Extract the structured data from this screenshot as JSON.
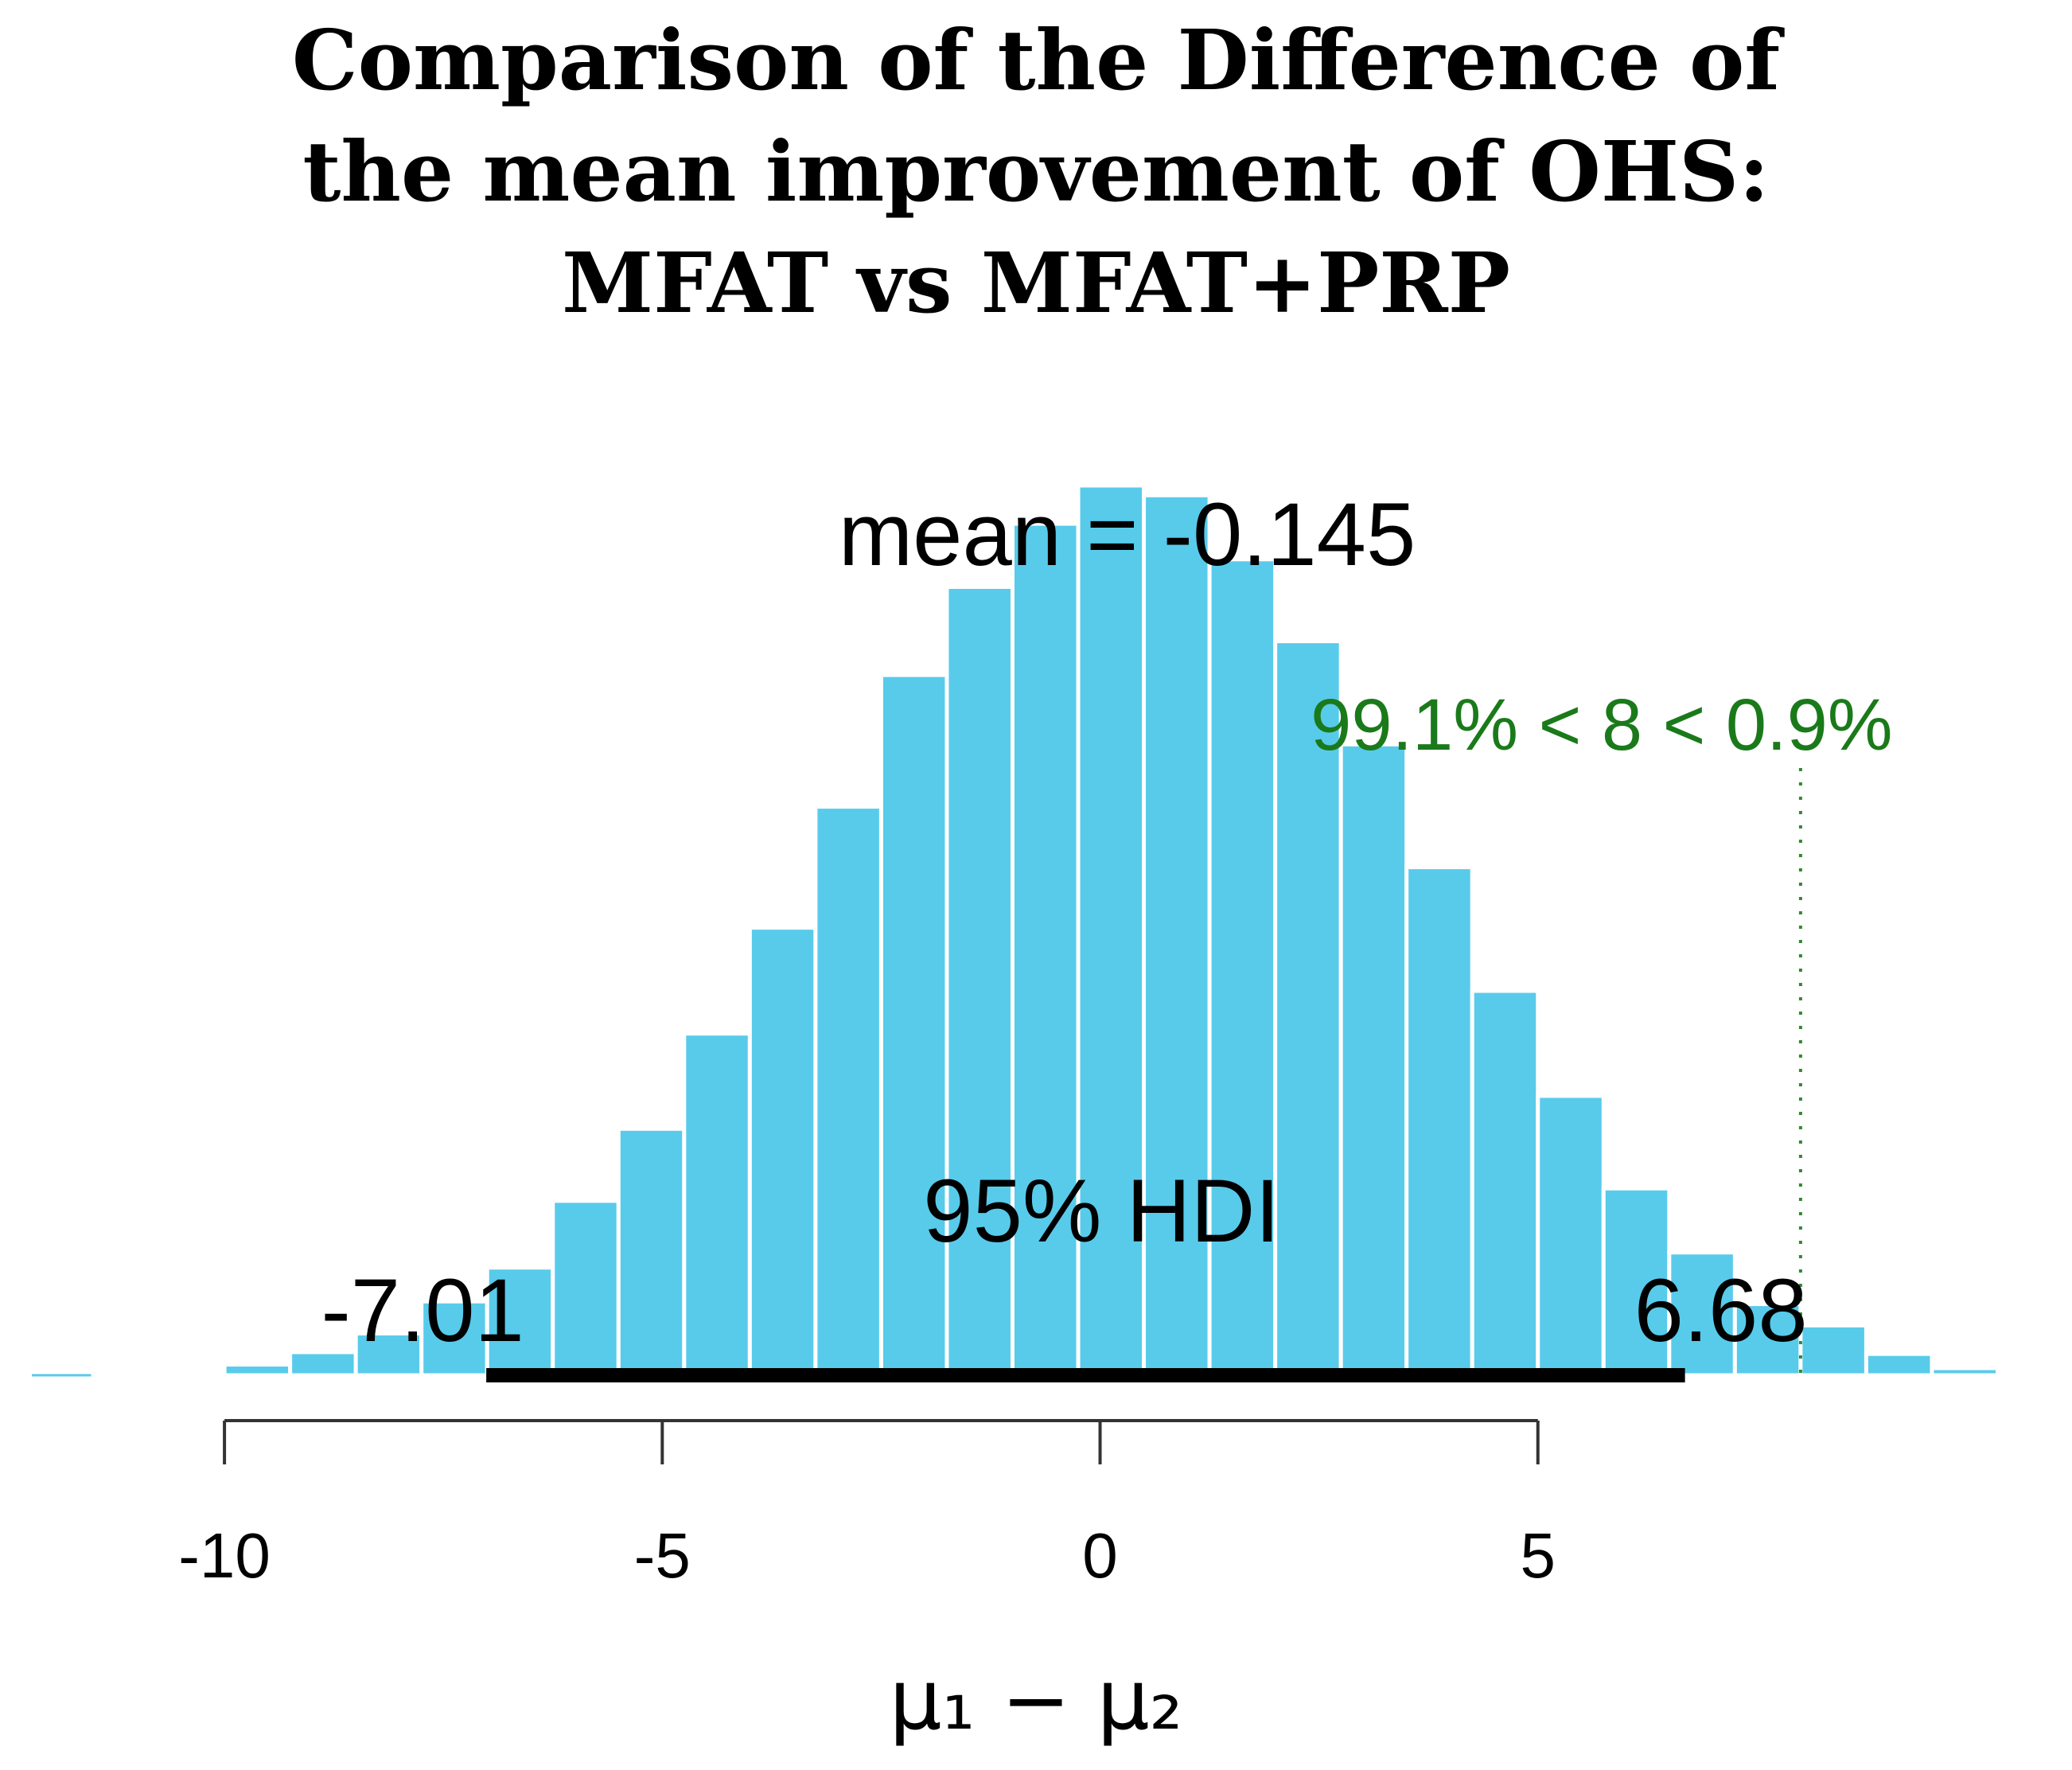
{
  "chart_data": {
    "type": "bar",
    "title_lines": [
      "Comparison of the Difference of",
      "the mean improvement of OHS:",
      "MFAT vs MFAT+PRP"
    ],
    "xlabel": "μ₁ − μ₂",
    "ylabel": "",
    "xlim": [
      -12.2,
      10.7
    ],
    "ylim": [
      0,
      1
    ],
    "grid": false,
    "x_ticks": [
      -10,
      -5,
      0,
      5
    ],
    "x_tick_labels": [
      "-10",
      "-5",
      "0",
      "5"
    ],
    "bin_width": 0.75,
    "bins": [
      {
        "x0": -11.5,
        "x1": -10.75,
        "value": 0.002
      },
      {
        "x0": -10.75,
        "x1": -10.0,
        "value": 0.004
      },
      {
        "x0": -10.0,
        "x1": -9.25,
        "value": 0.012
      },
      {
        "x0": -9.25,
        "x1": -8.5,
        "value": 0.026
      },
      {
        "x0": -8.5,
        "x1": -7.75,
        "value": 0.047
      },
      {
        "x0": -7.75,
        "x1": -7.0,
        "value": 0.083
      },
      {
        "x0": -7.0,
        "x1": -6.25,
        "value": 0.121
      },
      {
        "x0": -6.25,
        "x1": -5.5,
        "value": 0.196
      },
      {
        "x0": -5.5,
        "x1": -4.75,
        "value": 0.277
      },
      {
        "x0": -4.75,
        "x1": -4.0,
        "value": 0.384
      },
      {
        "x0": -4.0,
        "x1": -3.25,
        "value": 0.503
      },
      {
        "x0": -3.25,
        "x1": -2.5,
        "value": 0.639
      },
      {
        "x0": -2.5,
        "x1": -1.75,
        "value": 0.787
      },
      {
        "x0": -1.75,
        "x1": -1.0,
        "value": 0.886
      },
      {
        "x0": -1.0,
        "x1": -0.25,
        "value": 0.957
      },
      {
        "x0": -0.25,
        "x1": 0.5,
        "value": 1.0
      },
      {
        "x0": 0.5,
        "x1": 1.25,
        "value": 0.989
      },
      {
        "x0": 1.25,
        "x1": 2.0,
        "value": 0.917
      },
      {
        "x0": 2.0,
        "x1": 2.75,
        "value": 0.825
      },
      {
        "x0": 2.75,
        "x1": 3.5,
        "value": 0.709
      },
      {
        "x0": 3.5,
        "x1": 4.25,
        "value": 0.571
      },
      {
        "x0": 4.25,
        "x1": 5.0,
        "value": 0.432
      },
      {
        "x0": 5.0,
        "x1": 5.75,
        "value": 0.314
      },
      {
        "x0": 5.75,
        "x1": 6.5,
        "value": 0.21
      },
      {
        "x0": 6.5,
        "x1": 7.25,
        "value": 0.138
      },
      {
        "x0": 7.25,
        "x1": 8.0,
        "value": 0.08
      },
      {
        "x0": 8.0,
        "x1": 8.75,
        "value": 0.056
      },
      {
        "x0": 8.75,
        "x1": 9.5,
        "value": 0.024
      },
      {
        "x0": 9.5,
        "x1": 10.25,
        "value": 0.008
      },
      {
        "x0": 10.25,
        "x1": 11.0,
        "value": 0.003
      }
    ],
    "mean_value": -0.145,
    "mean_label": "mean = -0.145",
    "hdi": {
      "low": -7.01,
      "high": 6.68,
      "low_label": "-7.01",
      "high_label": "6.68",
      "label": "95% HDI"
    },
    "comparison": {
      "value": 8,
      "label": "99.1% < 8 < 0.9%",
      "pct_below": 99.1,
      "pct_above": 0.9
    },
    "colors": {
      "bar": "#58cbeb",
      "bar_edge": "#ffffff",
      "hdi_line": "#000000",
      "comparison_line": "#2e8b2e",
      "comparison_text": "#1a7a1a",
      "axis": "#333333"
    }
  }
}
